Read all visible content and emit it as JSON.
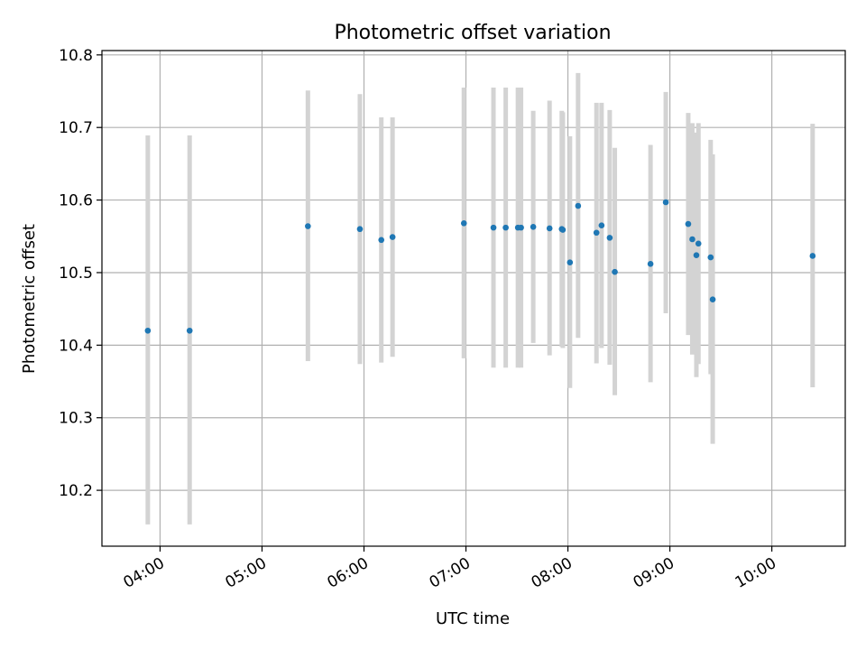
{
  "chart_data": {
    "type": "scatter",
    "title": "Photometric offset variation",
    "xlabel": "UTC time",
    "ylabel": "Photometric offset",
    "grid": true,
    "xlim_hours": [
      3.43,
      10.72
    ],
    "ylim": [
      10.123,
      10.806
    ],
    "xticks": [
      {
        "value": 4,
        "label": "04:00"
      },
      {
        "value": 5,
        "label": "05:00"
      },
      {
        "value": 6,
        "label": "06:00"
      },
      {
        "value": 7,
        "label": "07:00"
      },
      {
        "value": 8,
        "label": "08:00"
      },
      {
        "value": 9,
        "label": "09:00"
      },
      {
        "value": 10,
        "label": "10:00"
      }
    ],
    "yticks": [
      {
        "value": 10.2,
        "label": "10.2"
      },
      {
        "value": 10.3,
        "label": "10.3"
      },
      {
        "value": 10.4,
        "label": "10.4"
      },
      {
        "value": 10.5,
        "label": "10.5"
      },
      {
        "value": 10.6,
        "label": "10.6"
      },
      {
        "value": 10.7,
        "label": "10.7"
      },
      {
        "value": 10.8,
        "label": "10.8"
      }
    ],
    "colors": {
      "marker": "#1f77b4",
      "errorbar": "#d3d3d3",
      "grid": "#b0b0b0"
    },
    "points": [
      {
        "t": 3.88,
        "y": 10.42,
        "lo": 10.153,
        "hi": 10.689
      },
      {
        "t": 4.29,
        "y": 10.42,
        "lo": 10.153,
        "hi": 10.689
      },
      {
        "t": 5.45,
        "y": 10.564,
        "lo": 10.378,
        "hi": 10.751
      },
      {
        "t": 5.96,
        "y": 10.56,
        "lo": 10.374,
        "hi": 10.746
      },
      {
        "t": 6.17,
        "y": 10.545,
        "lo": 10.376,
        "hi": 10.714
      },
      {
        "t": 6.28,
        "y": 10.549,
        "lo": 10.384,
        "hi": 10.714
      },
      {
        "t": 6.98,
        "y": 10.568,
        "lo": 10.382,
        "hi": 10.755
      },
      {
        "t": 7.27,
        "y": 10.562,
        "lo": 10.369,
        "hi": 10.755
      },
      {
        "t": 7.39,
        "y": 10.562,
        "lo": 10.369,
        "hi": 10.755
      },
      {
        "t": 7.51,
        "y": 10.562,
        "lo": 10.369,
        "hi": 10.755
      },
      {
        "t": 7.54,
        "y": 10.562,
        "lo": 10.369,
        "hi": 10.755
      },
      {
        "t": 7.66,
        "y": 10.563,
        "lo": 10.403,
        "hi": 10.723
      },
      {
        "t": 7.82,
        "y": 10.561,
        "lo": 10.386,
        "hi": 10.737
      },
      {
        "t": 7.94,
        "y": 10.56,
        "lo": 10.398,
        "hi": 10.723
      },
      {
        "t": 7.95,
        "y": 10.559,
        "lo": 10.396,
        "hi": 10.721
      },
      {
        "t": 8.02,
        "y": 10.514,
        "lo": 10.341,
        "hi": 10.688
      },
      {
        "t": 8.1,
        "y": 10.592,
        "lo": 10.41,
        "hi": 10.775
      },
      {
        "t": 8.28,
        "y": 10.555,
        "lo": 10.375,
        "hi": 10.734
      },
      {
        "t": 8.33,
        "y": 10.565,
        "lo": 10.396,
        "hi": 10.734
      },
      {
        "t": 8.41,
        "y": 10.548,
        "lo": 10.373,
        "hi": 10.724
      },
      {
        "t": 8.46,
        "y": 10.501,
        "lo": 10.331,
        "hi": 10.672
      },
      {
        "t": 8.81,
        "y": 10.512,
        "lo": 10.349,
        "hi": 10.676
      },
      {
        "t": 8.96,
        "y": 10.597,
        "lo": 10.444,
        "hi": 10.749
      },
      {
        "t": 9.18,
        "y": 10.567,
        "lo": 10.414,
        "hi": 10.72
      },
      {
        "t": 9.22,
        "y": 10.546,
        "lo": 10.387,
        "hi": 10.706
      },
      {
        "t": 9.26,
        "y": 10.524,
        "lo": 10.356,
        "hi": 10.693
      },
      {
        "t": 9.28,
        "y": 10.54,
        "lo": 10.374,
        "hi": 10.706
      },
      {
        "t": 9.4,
        "y": 10.521,
        "lo": 10.36,
        "hi": 10.683
      },
      {
        "t": 9.42,
        "y": 10.463,
        "lo": 10.264,
        "hi": 10.663
      },
      {
        "t": 10.4,
        "y": 10.523,
        "lo": 10.342,
        "hi": 10.705
      }
    ]
  }
}
